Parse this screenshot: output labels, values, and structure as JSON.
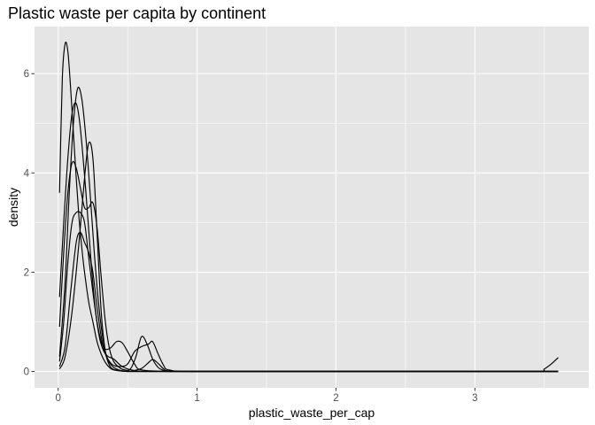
{
  "chart_data": {
    "type": "line",
    "title": "Plastic waste per capita by continent",
    "xlabel": "plastic_waste_per_cap",
    "ylabel": "density",
    "xlim": [
      -0.17,
      3.82
    ],
    "ylim": [
      -0.33,
      6.95
    ],
    "x_ticks": [
      0,
      1,
      2,
      3
    ],
    "x_tick_labels": [
      "0",
      "1",
      "2",
      "3"
    ],
    "y_ticks": [
      0,
      2,
      4,
      6
    ],
    "y_tick_labels": [
      "0",
      "2",
      "4",
      "6"
    ],
    "grid": true,
    "legend": "none",
    "colors": {
      "panel": "#e5e5e5",
      "grid": "#ffffff",
      "line": "#000000",
      "tick": "#333333"
    },
    "series": [
      {
        "x": [
          0.01,
          0.03,
          0.05,
          0.07,
          0.09,
          0.11,
          0.13,
          0.15,
          0.17,
          0.19,
          0.22,
          0.25,
          0.28,
          0.31,
          0.34,
          0.37,
          0.4,
          0.5,
          0.7,
          1.0,
          2.0,
          3.0,
          3.6
        ],
        "y": [
          3.6,
          5.9,
          6.6,
          6.45,
          5.7,
          4.8,
          3.9,
          3.1,
          2.5,
          2.0,
          1.4,
          1.0,
          0.6,
          0.35,
          0.18,
          0.08,
          0.03,
          0.0,
          0.0,
          0.0,
          0.0,
          0.0,
          0.0
        ]
      },
      {
        "x": [
          0.01,
          0.04,
          0.07,
          0.1,
          0.13,
          0.16,
          0.2,
          0.24,
          0.27,
          0.3,
          0.33,
          0.36,
          0.4,
          0.45,
          0.5,
          0.6,
          0.8,
          1.0,
          2.0,
          3.0,
          3.6
        ],
        "y": [
          1.5,
          3.0,
          4.3,
          5.2,
          5.4,
          4.9,
          3.6,
          2.1,
          1.2,
          0.65,
          0.4,
          0.3,
          0.25,
          0.12,
          0.05,
          0.0,
          0.0,
          0.0,
          0.0,
          0.0,
          0.0
        ]
      },
      {
        "x": [
          0.01,
          0.05,
          0.08,
          0.11,
          0.14,
          0.17,
          0.2,
          0.23,
          0.26,
          0.29,
          0.32,
          0.35,
          0.4,
          0.5,
          0.7,
          1.0,
          2.0,
          3.0,
          3.6
        ],
        "y": [
          0.3,
          1.8,
          3.6,
          5.0,
          5.7,
          5.5,
          4.7,
          3.6,
          2.4,
          1.4,
          0.7,
          0.3,
          0.08,
          0.0,
          0.0,
          0.0,
          0.0,
          0.0,
          0.0
        ]
      },
      {
        "x": [
          0.01,
          0.04,
          0.07,
          0.1,
          0.13,
          0.16,
          0.19,
          0.22,
          0.25,
          0.28,
          0.31,
          0.34,
          0.37,
          0.4,
          0.44,
          0.48,
          0.52,
          0.56,
          0.6,
          0.64,
          0.68,
          0.72,
          0.76,
          0.8,
          1.0,
          2.0,
          3.0,
          3.6
        ],
        "y": [
          0.9,
          2.4,
          3.6,
          4.2,
          4.1,
          3.7,
          3.3,
          3.3,
          3.4,
          2.9,
          1.9,
          1.0,
          0.45,
          0.2,
          0.08,
          0.03,
          0.05,
          0.3,
          0.7,
          0.55,
          0.25,
          0.08,
          0.02,
          0.0,
          0.0,
          0.0,
          0.0,
          0.0
        ]
      },
      {
        "x": [
          0.01,
          0.04,
          0.07,
          0.1,
          0.13,
          0.16,
          0.19,
          0.22,
          0.25,
          0.28,
          0.31,
          0.34,
          0.38,
          0.42,
          0.46,
          0.5,
          0.55,
          0.6,
          0.8,
          1.0,
          2.0,
          3.0,
          3.6
        ],
        "y": [
          0.2,
          1.0,
          2.2,
          3.0,
          3.2,
          3.2,
          3.0,
          2.3,
          1.6,
          1.0,
          0.6,
          0.45,
          0.48,
          0.6,
          0.58,
          0.4,
          0.15,
          0.03,
          0.0,
          0.0,
          0.0,
          0.0,
          0.0
        ]
      },
      {
        "x": [
          0.01,
          0.05,
          0.09,
          0.13,
          0.16,
          0.19,
          0.22,
          0.25,
          0.28,
          0.31,
          0.34,
          0.37,
          0.4,
          0.45,
          0.5,
          0.55,
          0.6,
          0.65,
          0.68,
          0.72,
          0.76,
          0.8,
          1.0,
          2.0,
          3.0,
          3.6
        ],
        "y": [
          0.1,
          0.5,
          1.6,
          2.6,
          2.8,
          2.6,
          2.4,
          2.0,
          1.3,
          0.7,
          0.35,
          0.2,
          0.12,
          0.1,
          0.15,
          0.4,
          0.5,
          0.55,
          0.6,
          0.35,
          0.12,
          0.03,
          0.0,
          0.0,
          0.0,
          0.0
        ]
      },
      {
        "x": [
          0.01,
          0.05,
          0.1,
          0.15,
          0.19,
          0.22,
          0.25,
          0.28,
          0.31,
          0.34,
          0.37,
          0.4,
          0.45,
          0.5,
          0.55,
          0.6,
          0.64,
          0.68,
          0.72,
          0.76,
          0.8,
          1.0,
          2.0,
          3.0,
          3.45,
          3.5,
          3.55,
          3.6
        ],
        "y": [
          0.05,
          0.3,
          1.2,
          2.6,
          3.9,
          4.6,
          4.3,
          2.8,
          1.2,
          0.4,
          0.12,
          0.04,
          0.01,
          0.0,
          0.02,
          0.06,
          0.15,
          0.24,
          0.16,
          0.05,
          0.01,
          0.0,
          0.0,
          0.0,
          0.0,
          0.05,
          0.15,
          0.28
        ]
      }
    ]
  }
}
